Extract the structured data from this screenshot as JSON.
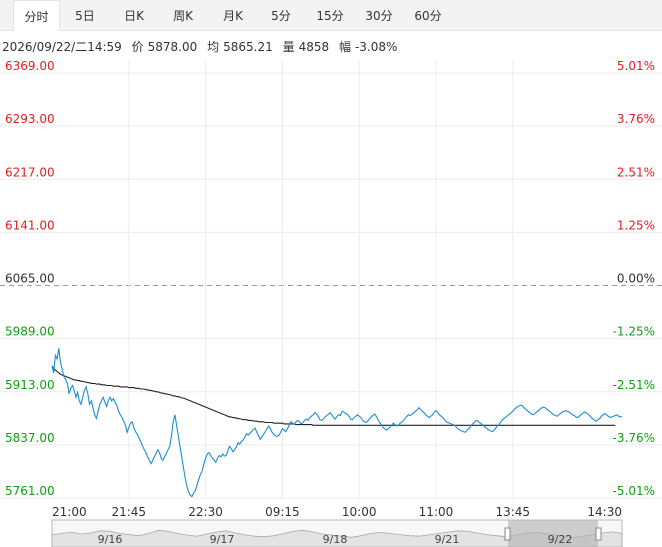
{
  "tabs": [
    {
      "label": "分时",
      "active": true
    },
    {
      "label": "5日"
    },
    {
      "label": "日K"
    },
    {
      "label": "周K"
    },
    {
      "label": "月K"
    },
    {
      "label": "5分"
    },
    {
      "label": "15分"
    },
    {
      "label": "30分"
    },
    {
      "label": "60分"
    }
  ],
  "info": {
    "datetime": "2026/09/22/二14:59",
    "price_label": "价",
    "price": "5878.00",
    "avg_label": "均",
    "avg": "5865.21",
    "vol_label": "量",
    "volume": "4858",
    "chg_label": "幅",
    "change": "-3.08%"
  },
  "colors": {
    "up": "#e02020",
    "down": "#10a010",
    "neutral": "#333333",
    "price_line": "#1a8fd0",
    "avg_line": "#222222",
    "grid": "#ececec",
    "baseline": "#999999"
  },
  "chart_data": {
    "type": "line",
    "prev_close": 6065.0,
    "ylim": [
      5761.0,
      6369.0
    ],
    "y_ticks": [
      "6369.00",
      "6293.00",
      "6217.00",
      "6141.00",
      "6065.00",
      "5989.00",
      "5913.00",
      "5837.00",
      "5761.00"
    ],
    "y_pct_ticks": [
      "5.01%",
      "3.76%",
      "2.51%",
      "1.25%",
      "0.00%",
      "-1.25%",
      "-2.51%",
      "-3.76%",
      "-5.01%"
    ],
    "x_ticks": [
      "21:00",
      "21:45",
      "22:30",
      "09:15",
      "10:00",
      "11:00",
      "13:45",
      "14:30"
    ],
    "x_tick_index": [
      0,
      45,
      90,
      135,
      180,
      225,
      270,
      315
    ],
    "series": [
      {
        "values": [
          5950,
          5940,
          5965,
          5960,
          5975,
          5955,
          5945,
          5935,
          5930,
          5925,
          5910,
          5918,
          5922,
          5915,
          5905,
          5912,
          5900,
          5895,
          5905,
          5915,
          5920,
          5910,
          5895,
          5900,
          5890,
          5880,
          5875,
          5885,
          5895,
          5900,
          5905,
          5898,
          5892,
          5900,
          5905,
          5900,
          5903,
          5898,
          5893,
          5885,
          5880,
          5876,
          5871,
          5865,
          5855,
          5862,
          5868,
          5870,
          5862,
          5856,
          5852,
          5847,
          5842,
          5836,
          5830,
          5826,
          5820,
          5815,
          5810,
          5815,
          5820,
          5825,
          5830,
          5826,
          5818,
          5815,
          5820,
          5825,
          5830,
          5835,
          5850,
          5870,
          5880,
          5865,
          5850,
          5835,
          5820,
          5805,
          5790,
          5778,
          5770,
          5765,
          5763,
          5768,
          5772,
          5780,
          5788,
          5795,
          5800,
          5810,
          5818,
          5824,
          5826,
          5822,
          5818,
          5815,
          5812,
          5818,
          5822,
          5820,
          5824,
          5821,
          5822,
          5828,
          5835,
          5832,
          5827,
          5830,
          5834,
          5840,
          5838,
          5842,
          5844,
          5848,
          5853,
          5851,
          5854,
          5856,
          5859,
          5861,
          5855,
          5850,
          5845,
          5848,
          5852,
          5856,
          5860,
          5864,
          5860,
          5855,
          5852,
          5850,
          5849,
          5851,
          5855,
          5860,
          5858,
          5856,
          5860,
          5865,
          5870,
          5868,
          5866,
          5870,
          5872,
          5870,
          5867,
          5869,
          5872,
          5874,
          5872,
          5876,
          5878,
          5880,
          5883,
          5881,
          5878,
          5873,
          5872,
          5874,
          5877,
          5879,
          5881,
          5883,
          5880,
          5876,
          5874,
          5878,
          5880,
          5879,
          5885,
          5884,
          5882,
          5881,
          5878,
          5874,
          5873,
          5876,
          5878,
          5880,
          5878,
          5876,
          5872,
          5870,
          5869,
          5871,
          5874,
          5877,
          5879,
          5881,
          5878,
          5873,
          5869,
          5866,
          5862,
          5860,
          5858,
          5860,
          5862,
          5865,
          5868,
          5866,
          5864,
          5865,
          5868,
          5870,
          5872,
          5875,
          5878,
          5880,
          5879,
          5881,
          5883,
          5885,
          5887,
          5890,
          5888,
          5885,
          5883,
          5880,
          5878,
          5876,
          5878,
          5880,
          5884,
          5886,
          5883,
          5880,
          5878,
          5876,
          5873,
          5870,
          5869,
          5868,
          5867,
          5866,
          5865,
          5862,
          5860,
          5858,
          5857,
          5856,
          5855,
          5857,
          5860,
          5862,
          5866,
          5868,
          5871,
          5872,
          5870,
          5868,
          5866,
          5864,
          5862,
          5860,
          5858,
          5857,
          5856,
          5858,
          5861,
          5864,
          5866,
          5870,
          5873,
          5875,
          5877,
          5879,
          5881,
          5883,
          5885,
          5888,
          5890,
          5892,
          5893,
          5894,
          5892,
          5889,
          5887,
          5885,
          5883,
          5881,
          5880,
          5882,
          5884,
          5886,
          5888,
          5890,
          5891,
          5890,
          5888,
          5886,
          5884,
          5882,
          5880,
          5879,
          5878,
          5880,
          5882,
          5884,
          5885,
          5886,
          5885,
          5884,
          5882,
          5880,
          5879,
          5877,
          5876,
          5878,
          5880,
          5882,
          5884,
          5883,
          5881,
          5879,
          5876,
          5874,
          5872,
          5871,
          5873,
          5875,
          5878,
          5880,
          5882,
          5880,
          5878,
          5876,
          5877,
          5878,
          5879,
          5880,
          5878,
          5877,
          5878
        ]
      },
      {
        "values": [
          5950,
          5946,
          5944,
          5942,
          5940,
          5938,
          5937,
          5936,
          5935,
          5934,
          5933,
          5932,
          5931,
          5930,
          5930,
          5929,
          5929,
          5928,
          5928,
          5927,
          5927,
          5926,
          5926,
          5925,
          5925,
          5925,
          5924,
          5924,
          5924,
          5923,
          5923,
          5923,
          5922,
          5922,
          5922,
          5922,
          5921,
          5921,
          5921,
          5921,
          5920,
          5920,
          5920,
          5920,
          5920,
          5919,
          5919,
          5919,
          5919,
          5918,
          5918,
          5918,
          5917,
          5917,
          5917,
          5916,
          5916,
          5915,
          5915,
          5914,
          5914,
          5913,
          5913,
          5912,
          5911,
          5911,
          5910,
          5910,
          5909,
          5909,
          5908,
          5907,
          5907,
          5906,
          5906,
          5905,
          5904,
          5904,
          5903,
          5902,
          5901,
          5900,
          5899,
          5898,
          5897,
          5896,
          5895,
          5894,
          5893,
          5892,
          5891,
          5890,
          5889,
          5888,
          5887,
          5886,
          5885,
          5884,
          5883,
          5882,
          5881,
          5880,
          5879,
          5878,
          5877,
          5877,
          5876,
          5876,
          5875,
          5875,
          5874,
          5874,
          5873,
          5873,
          5873,
          5872,
          5872,
          5872,
          5871,
          5871,
          5871,
          5870,
          5870,
          5870,
          5870,
          5869,
          5869,
          5869,
          5869,
          5869,
          5868,
          5868,
          5868,
          5868,
          5868,
          5868,
          5867,
          5867,
          5867,
          5867,
          5867,
          5867,
          5867,
          5866,
          5866,
          5866,
          5866,
          5866,
          5866,
          5866,
          5866,
          5866,
          5866,
          5865,
          5865,
          5865,
          5865,
          5865,
          5865,
          5865,
          5865,
          5865,
          5865,
          5865,
          5865,
          5865,
          5865,
          5865,
          5865,
          5865,
          5865,
          5865,
          5865,
          5865,
          5865,
          5865,
          5865,
          5865,
          5865,
          5865,
          5865,
          5865,
          5865,
          5865,
          5865,
          5865,
          5865,
          5865,
          5865,
          5865,
          5865,
          5865,
          5865,
          5865,
          5865,
          5865,
          5865,
          5865,
          5865,
          5865,
          5865,
          5865,
          5865,
          5865,
          5865,
          5865,
          5865,
          5865,
          5865,
          5865,
          5865,
          5865,
          5865,
          5865,
          5865,
          5865,
          5865,
          5865,
          5865,
          5865,
          5865,
          5865,
          5865,
          5865,
          5865,
          5865,
          5865,
          5865,
          5865,
          5865,
          5865,
          5865,
          5865,
          5865,
          5865,
          5865,
          5865,
          5865,
          5865,
          5865,
          5865,
          5865,
          5865,
          5865,
          5865,
          5865,
          5865,
          5865,
          5865,
          5865,
          5865,
          5865,
          5865,
          5865,
          5865,
          5865,
          5865,
          5865,
          5865,
          5865,
          5865,
          5865,
          5865,
          5865,
          5865,
          5865,
          5865,
          5865,
          5865,
          5865,
          5865,
          5865,
          5865,
          5865,
          5865,
          5865,
          5865,
          5865,
          5865,
          5865,
          5865,
          5865,
          5865,
          5865,
          5865,
          5865,
          5865,
          5865,
          5865,
          5865,
          5865,
          5865,
          5865,
          5865,
          5865,
          5865,
          5865,
          5865,
          5865,
          5865,
          5865,
          5865,
          5865,
          5865,
          5865,
          5865,
          5865,
          5865,
          5865,
          5865,
          5865,
          5865,
          5865,
          5865,
          5865,
          5865,
          5865,
          5865,
          5865,
          5865,
          5865,
          5865,
          5865,
          5865,
          5865,
          5865,
          5865,
          5865,
          5865,
          5865,
          5865
        ]
      }
    ]
  },
  "navigator": {
    "labels": [
      "9/16",
      "9/17",
      "9/18",
      "9/21",
      "9/22"
    ],
    "selected_label": "9/22",
    "profile": [
      0.45,
      0.5,
      0.55,
      0.48,
      0.52,
      0.6,
      0.58,
      0.5,
      0.46,
      0.42,
      0.5,
      0.62,
      0.58,
      0.5,
      0.44,
      0.4,
      0.48,
      0.55,
      0.6,
      0.52,
      0.45,
      0.4,
      0.38,
      0.42,
      0.5,
      0.58,
      0.62,
      0.56,
      0.48,
      0.44,
      0.4,
      0.36,
      0.42,
      0.5,
      0.54,
      0.5,
      0.46,
      0.42,
      0.4,
      0.45,
      0.5,
      0.55,
      0.6,
      0.58,
      0.52,
      0.46,
      0.42,
      0.38,
      0.44,
      0.5,
      0.55,
      0.5,
      0.45,
      0.4,
      0.35,
      0.4,
      0.46,
      0.52,
      0.56,
      0.5
    ]
  }
}
